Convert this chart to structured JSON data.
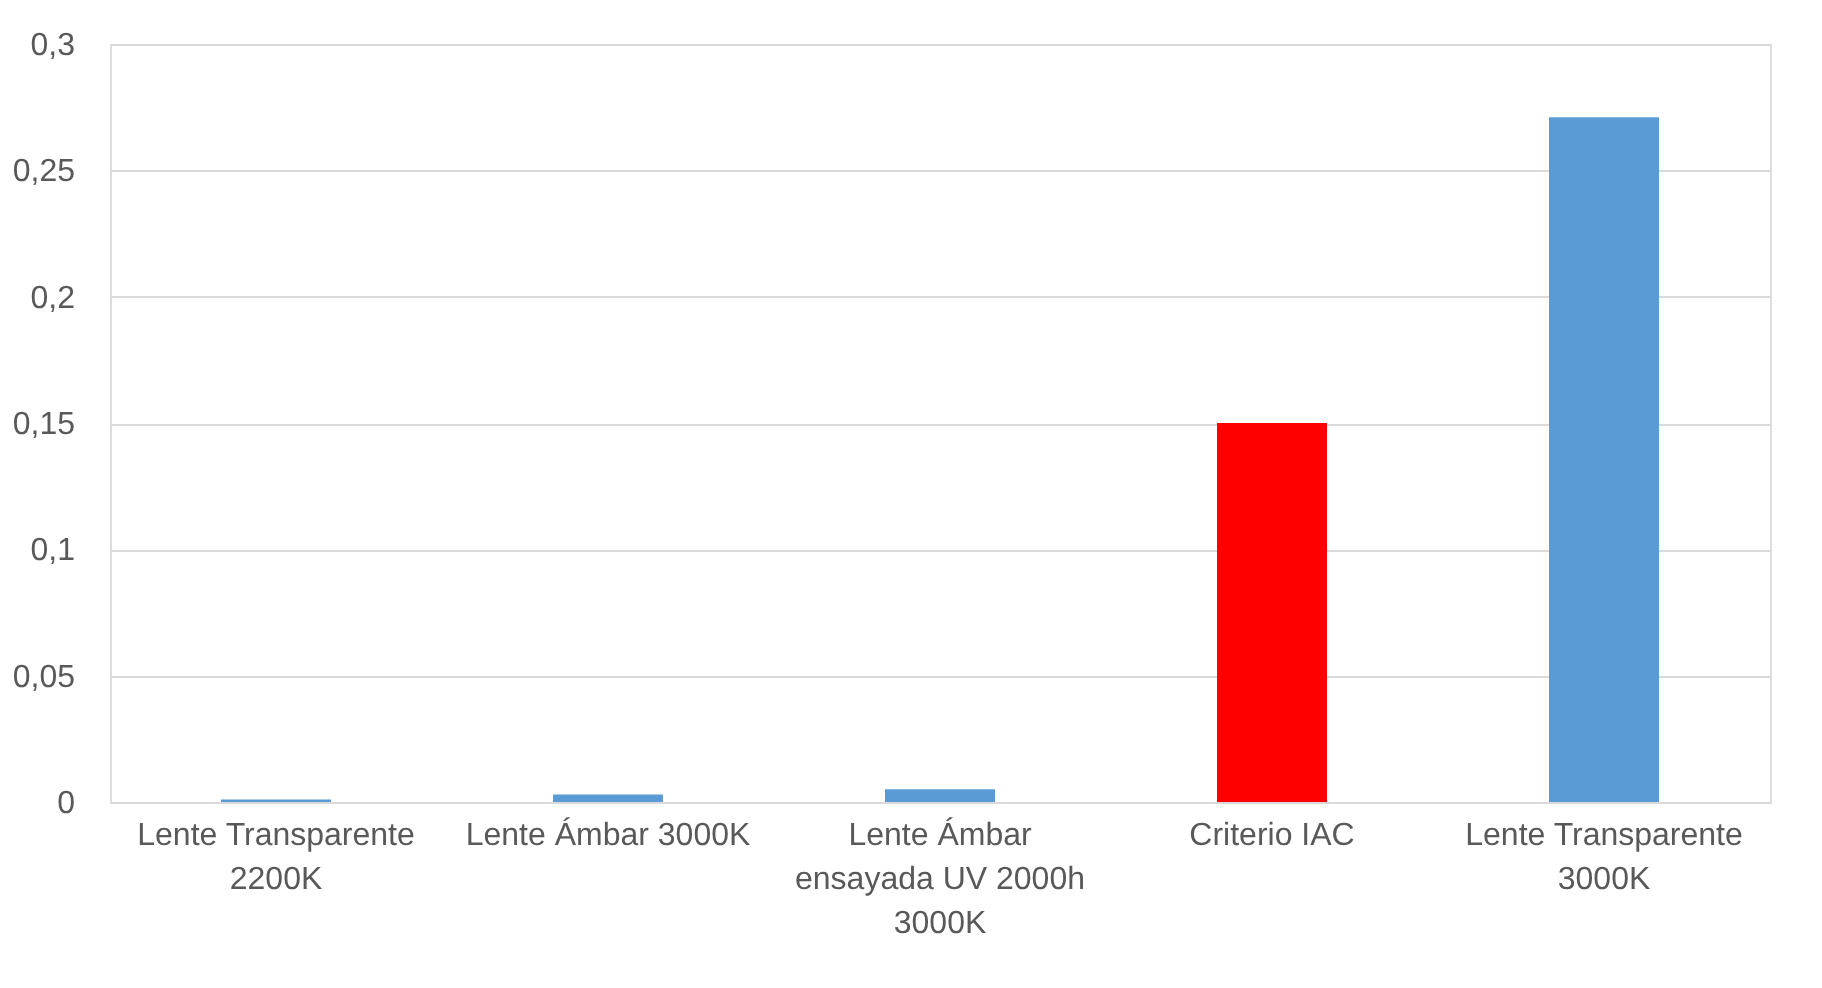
{
  "chart_data": {
    "type": "bar",
    "categories": [
      "Lente Transparente 2200K",
      "Lente Ámbar 3000K",
      "Lente Ámbar ensayada UV 2000h 3000K",
      "Criterio IAC",
      "Lente Transparente 3000K"
    ],
    "values": [
      0.001,
      0.003,
      0.005,
      0.15,
      0.271
    ],
    "colors": [
      "#5b9bd5",
      "#5b9bd5",
      "#5b9bd5",
      "#ff0000",
      "#5b9bd5"
    ],
    "ylim": [
      0,
      0.3
    ],
    "yticks": [
      {
        "value": 0,
        "label": "0"
      },
      {
        "value": 0.05,
        "label": "0,05"
      },
      {
        "value": 0.1,
        "label": "0,1"
      },
      {
        "value": 0.15,
        "label": "0,15"
      },
      {
        "value": 0.2,
        "label": "0,2"
      },
      {
        "value": 0.25,
        "label": "0,25"
      },
      {
        "value": 0.3,
        "label": "0,3"
      }
    ],
    "grid": "y"
  }
}
